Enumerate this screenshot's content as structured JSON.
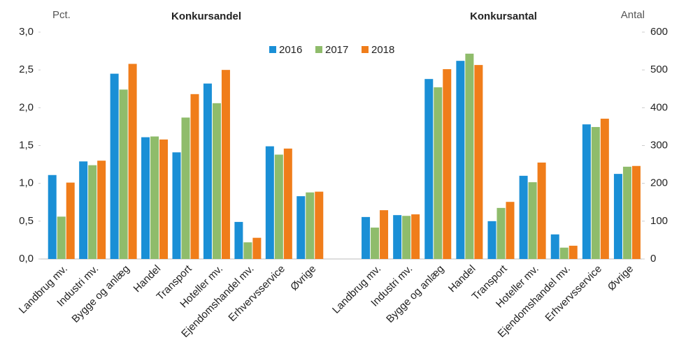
{
  "chart_data": [
    {
      "type": "bar",
      "title": "Konkursandel",
      "ylabel": "Pct.",
      "axis_side": "left",
      "categories": [
        "Landbrug mv.",
        "Industri mv.",
        "Bygge og anlæg",
        "Handel",
        "Transport",
        "Hoteller mv.",
        "Ejendomshandel mv.",
        "Erhvervsservice",
        "Øvrige"
      ],
      "series": [
        {
          "name": "2016",
          "color": "#1a8fd6",
          "values": [
            1.11,
            1.29,
            2.45,
            1.61,
            1.41,
            2.32,
            0.49,
            1.49,
            0.83
          ]
        },
        {
          "name": "2017",
          "color": "#8fbc6b",
          "values": [
            0.56,
            1.24,
            2.24,
            1.62,
            1.87,
            2.06,
            0.22,
            1.38,
            0.88
          ]
        },
        {
          "name": "2018",
          "color": "#f07d1a",
          "values": [
            1.01,
            1.3,
            2.58,
            1.58,
            2.18,
            2.5,
            0.28,
            1.46,
            0.89
          ]
        }
      ],
      "ylim": [
        0,
        3
      ],
      "yticks": [
        {
          "value": 0,
          "label": "0,0"
        },
        {
          "value": 0.5,
          "label": "0,5"
        },
        {
          "value": 1,
          "label": "1,0"
        },
        {
          "value": 1.5,
          "label": "1,5"
        },
        {
          "value": 2,
          "label": "2,0"
        },
        {
          "value": 2.5,
          "label": "2,5"
        },
        {
          "value": 3,
          "label": "3,0"
        }
      ],
      "legend": "top"
    },
    {
      "type": "bar",
      "title": "Konkursantal",
      "ylabel": "Antal",
      "axis_side": "right",
      "categories": [
        "Landbrug mv.",
        "Industri mv.",
        "Bygge og anlæg",
        "Handel",
        "Transport",
        "Hoteller mv.",
        "Ejendomshandel mv.",
        "Erhvervsservice",
        "Øvrige"
      ],
      "series": [
        {
          "color": "#1a8fd6",
          "values": [
            111,
            116,
            476,
            524,
            100,
            220,
            65,
            356,
            225
          ]
        },
        {
          "color": "#8fbc6b",
          "values": [
            83,
            114,
            454,
            543,
            135,
            203,
            30,
            349,
            244
          ]
        },
        {
          "color": "#f07d1a",
          "values": [
            129,
            118,
            502,
            513,
            151,
            255,
            35,
            371,
            246
          ]
        }
      ],
      "ylim": [
        0,
        600
      ],
      "yticks": [
        0,
        100,
        200,
        300,
        400,
        500,
        600
      ]
    }
  ]
}
